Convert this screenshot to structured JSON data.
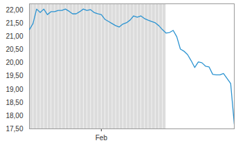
{
  "chart_data": {
    "type": "line",
    "color": "#2b93d1",
    "categories": [
      null,
      null,
      null,
      null,
      null,
      null,
      null,
      null,
      null,
      null,
      null,
      null,
      null,
      null,
      null,
      null,
      null,
      null,
      null,
      null,
      "Feb",
      null,
      null,
      null,
      null,
      null,
      null,
      null,
      null,
      null,
      null,
      null,
      null,
      null,
      null,
      null,
      null,
      null,
      null,
      null,
      null,
      null,
      null,
      null,
      null,
      null,
      null,
      null,
      null,
      null,
      null,
      null,
      null,
      null,
      null,
      null,
      null,
      null
    ],
    "values": [
      21.27,
      21.5,
      22.05,
      21.92,
      22.05,
      21.84,
      21.95,
      21.95,
      22.0,
      22.0,
      22.05,
      21.97,
      21.87,
      21.87,
      21.95,
      22.05,
      22.0,
      22.03,
      21.92,
      21.87,
      21.84,
      21.66,
      21.58,
      21.5,
      21.42,
      21.37,
      21.48,
      21.53,
      21.63,
      21.79,
      21.74,
      21.79,
      21.69,
      21.63,
      21.58,
      21.53,
      21.42,
      21.27,
      21.14,
      21.16,
      21.24,
      21.0,
      20.53,
      20.45,
      20.32,
      20.09,
      19.83,
      20.04,
      20.01,
      19.88,
      19.85,
      19.57,
      19.55,
      19.55,
      19.6,
      19.41,
      19.22,
      17.68
    ],
    "shaded_x": [
      0,
      38
    ],
    "ylim": [
      17.5,
      22.25
    ],
    "yticks": [
      {
        "value": 17.5,
        "label": "17,50"
      },
      {
        "value": 18,
        "label": "18,00"
      },
      {
        "value": 18.5,
        "label": "18,50"
      },
      {
        "value": 19,
        "label": "19,00"
      },
      {
        "value": 19.5,
        "label": "19,50"
      },
      {
        "value": 20,
        "label": "20,00"
      },
      {
        "value": 20.5,
        "label": "20,50"
      },
      {
        "value": 21,
        "label": "21,00"
      },
      {
        "value": 21.5,
        "label": "21,50"
      },
      {
        "value": 22,
        "label": "22,00"
      }
    ],
    "grid": false
  }
}
